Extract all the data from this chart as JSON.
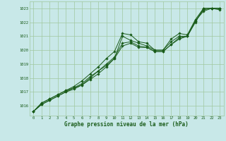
{
  "background_color": "#c8e8e8",
  "grid_color": "#a0c8a0",
  "line_color": "#1a5c1a",
  "marker_color": "#1a5c1a",
  "xlabel": "Graphe pression niveau de la mer (hPa)",
  "xlim": [
    -0.5,
    23.5
  ],
  "ylim": [
    1015.3,
    1023.5
  ],
  "yticks": [
    1016,
    1017,
    1018,
    1019,
    1020,
    1021,
    1022,
    1023
  ],
  "xticks": [
    0,
    1,
    2,
    3,
    4,
    5,
    6,
    7,
    8,
    9,
    10,
    11,
    12,
    13,
    14,
    15,
    16,
    17,
    18,
    19,
    20,
    21,
    22,
    23
  ],
  "series": [
    [
      1015.6,
      1016.2,
      1016.5,
      1016.8,
      1017.1,
      1017.4,
      1017.8,
      1018.3,
      1018.8,
      1019.4,
      1019.9,
      1021.2,
      1021.1,
      1020.6,
      1020.5,
      1020.0,
      1020.0,
      1020.8,
      1021.2,
      1021.1,
      1022.2,
      1023.0,
      1023.0,
      1023.0
    ],
    [
      1015.6,
      1016.2,
      1016.5,
      1016.8,
      1017.1,
      1017.3,
      1017.6,
      1018.1,
      1018.5,
      1018.9,
      1019.4,
      1021.0,
      1020.7,
      1020.5,
      1020.3,
      1020.0,
      1020.0,
      1020.6,
      1021.0,
      1021.0,
      1022.0,
      1023.0,
      1023.0,
      1023.0
    ],
    [
      1015.6,
      1016.1,
      1016.4,
      1016.7,
      1017.0,
      1017.3,
      1017.5,
      1018.0,
      1018.5,
      1019.0,
      1019.5,
      1020.5,
      1020.6,
      1020.3,
      1020.2,
      1019.9,
      1019.9,
      1020.4,
      1020.9,
      1021.0,
      1022.1,
      1022.9,
      1023.0,
      1023.0
    ],
    [
      1015.6,
      1016.1,
      1016.4,
      1016.7,
      1017.0,
      1017.2,
      1017.5,
      1017.9,
      1018.3,
      1018.8,
      1019.4,
      1020.3,
      1020.5,
      1020.2,
      1020.2,
      1019.9,
      1019.9,
      1020.4,
      1020.8,
      1021.0,
      1022.1,
      1022.8,
      1023.0,
      1022.9
    ]
  ]
}
